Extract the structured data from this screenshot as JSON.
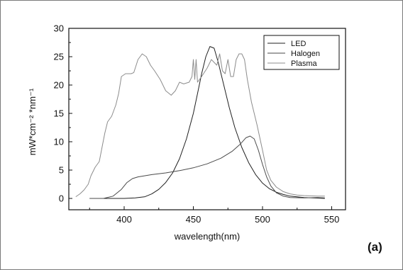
{
  "chart_data": {
    "type": "line",
    "title": "",
    "xlabel": "wavelength(nm)",
    "ylabel": "mW*cm⁻² *nm⁻¹",
    "xlim": [
      360,
      560
    ],
    "ylim": [
      -2,
      30
    ],
    "x_ticks": [
      400,
      450,
      500,
      550
    ],
    "y_ticks": [
      0,
      5,
      10,
      15,
      20,
      25,
      30
    ],
    "grid": false,
    "legend_position": "top-right",
    "panel_label": "(a)",
    "series": [
      {
        "name": "LED",
        "color": "#202020",
        "points": [
          [
            375,
            0
          ],
          [
            390,
            0
          ],
          [
            400,
            0
          ],
          [
            408,
            0.1
          ],
          [
            415,
            0.3
          ],
          [
            420,
            0.8
          ],
          [
            425,
            1.6
          ],
          [
            430,
            2.8
          ],
          [
            435,
            4.5
          ],
          [
            440,
            7
          ],
          [
            445,
            10.5
          ],
          [
            450,
            15
          ],
          [
            453,
            18.5
          ],
          [
            456,
            22
          ],
          [
            459,
            25
          ],
          [
            462,
            26.8
          ],
          [
            465,
            26.5
          ],
          [
            468,
            24
          ],
          [
            472,
            20
          ],
          [
            476,
            16
          ],
          [
            480,
            12.5
          ],
          [
            485,
            9
          ],
          [
            490,
            6.3
          ],
          [
            495,
            4.2
          ],
          [
            500,
            2.7
          ],
          [
            505,
            1.7
          ],
          [
            510,
            1.1
          ],
          [
            515,
            0.7
          ],
          [
            520,
            0.4
          ],
          [
            530,
            0.15
          ],
          [
            545,
            0
          ]
        ]
      },
      {
        "name": "Halogen",
        "color": "#4a4a4a",
        "points": [
          [
            375,
            0
          ],
          [
            385,
            0
          ],
          [
            392,
            0.4
          ],
          [
            398,
            1.6
          ],
          [
            402,
            2.8
          ],
          [
            406,
            3.5
          ],
          [
            410,
            3.8
          ],
          [
            420,
            4.2
          ],
          [
            430,
            4.5
          ],
          [
            440,
            4.9
          ],
          [
            450,
            5.4
          ],
          [
            460,
            6.1
          ],
          [
            470,
            7.1
          ],
          [
            478,
            8.3
          ],
          [
            484,
            9.6
          ],
          [
            488,
            10.7
          ],
          [
            491,
            11
          ],
          [
            494,
            10.5
          ],
          [
            497,
            8.5
          ],
          [
            500,
            6
          ],
          [
            503,
            3.8
          ],
          [
            506,
            2.2
          ],
          [
            510,
            1
          ],
          [
            515,
            0.4
          ],
          [
            520,
            0.15
          ],
          [
            530,
            0.1
          ],
          [
            540,
            0.15
          ],
          [
            545,
            0.1
          ]
        ]
      },
      {
        "name": "Plasma",
        "color": "#8c8c8c",
        "points": [
          [
            365,
            0.3
          ],
          [
            368,
            0.8
          ],
          [
            371,
            1.5
          ],
          [
            374,
            2.5
          ],
          [
            376,
            4
          ],
          [
            379,
            5.5
          ],
          [
            382,
            6.5
          ],
          [
            384,
            9
          ],
          [
            386,
            11.5
          ],
          [
            388,
            13.5
          ],
          [
            391,
            14.5
          ],
          [
            394,
            16.5
          ],
          [
            396,
            18.5
          ],
          [
            398,
            21.5
          ],
          [
            401,
            22
          ],
          [
            405,
            22
          ],
          [
            407,
            22.2
          ],
          [
            410,
            24.5
          ],
          [
            413,
            25.5
          ],
          [
            416,
            25
          ],
          [
            419,
            23.5
          ],
          [
            422,
            22.5
          ],
          [
            426,
            21
          ],
          [
            430,
            19
          ],
          [
            434,
            18.2
          ],
          [
            437,
            19
          ],
          [
            440,
            20.5
          ],
          [
            443,
            20.2
          ],
          [
            447,
            20.5
          ],
          [
            449,
            21.5
          ],
          [
            450,
            24.5
          ],
          [
            451,
            21
          ],
          [
            452,
            24.5
          ],
          [
            453,
            20.5
          ],
          [
            456,
            21.5
          ],
          [
            460,
            23
          ],
          [
            463,
            24.5
          ],
          [
            467,
            23.5
          ],
          [
            469,
            25.5
          ],
          [
            471,
            22.5
          ],
          [
            473,
            22
          ],
          [
            475,
            24.5
          ],
          [
            477,
            21.5
          ],
          [
            479,
            21.5
          ],
          [
            481,
            24.5
          ],
          [
            483,
            25.5
          ],
          [
            485,
            25.5
          ],
          [
            487,
            24.5
          ],
          [
            489,
            21
          ],
          [
            492,
            17
          ],
          [
            496,
            13
          ],
          [
            500,
            8.5
          ],
          [
            503,
            5
          ],
          [
            506,
            3.2
          ],
          [
            510,
            2
          ],
          [
            515,
            1.2
          ],
          [
            520,
            0.8
          ],
          [
            525,
            0.6
          ],
          [
            530,
            0.5
          ],
          [
            540,
            0.4
          ],
          [
            545,
            0.4
          ]
        ]
      }
    ]
  }
}
